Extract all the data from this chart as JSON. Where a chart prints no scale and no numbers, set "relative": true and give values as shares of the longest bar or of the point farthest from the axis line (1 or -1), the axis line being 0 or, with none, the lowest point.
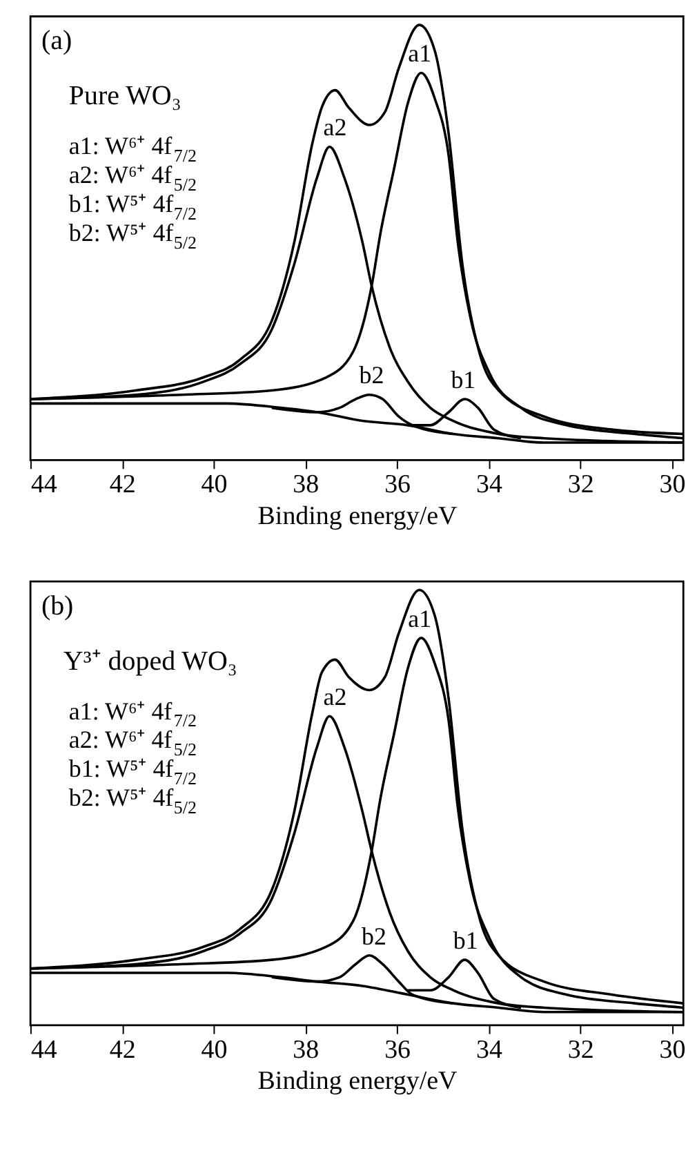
{
  "chart_data": [
    {
      "type": "line",
      "relative": true,
      "xlabel": "Binding energy/eV",
      "xlim": [
        44,
        29.75
      ],
      "xticks": [
        44,
        42,
        40,
        38,
        36,
        34,
        32,
        30
      ],
      "tick_labels": "x",
      "annotations": [
        "(a)",
        "Pure WO₃",
        "a1: W⁶⁺ 4f$_{7/2}$",
        "a2: W⁶⁺ 4f$_{5/2}$",
        "b1: W⁵⁺ 4f$_{7/2}$",
        "b2: W⁵⁺ 4f$_{5/2}$",
        {
          "text": "a1",
          "x": 35.5,
          "y": 0.9
        },
        {
          "text": "a2",
          "x": 37.35,
          "y": 0.73
        },
        {
          "text": "b2",
          "x": 36.55,
          "y": 0.16
        },
        {
          "text": "b1",
          "x": 34.55,
          "y": 0.15
        }
      ],
      "series": [
        {
          "color": "#000000",
          "x": [
            44,
            41.7,
            40.22,
            39.43,
            38.73,
            38.24,
            37.84,
            37.64,
            37.35,
            37.05,
            36.6,
            36.26,
            35.96,
            35.51,
            35.17,
            34.87,
            34.57,
            34.18,
            33.78,
            32.79,
            31.31,
            29.75
          ],
          "values": [
            0.14,
            0.16,
            0.19,
            0.23,
            0.32,
            0.5,
            0.73,
            0.81,
            0.85,
            0.81,
            0.77,
            0.8,
            0.9,
            1.0,
            0.94,
            0.75,
            0.45,
            0.24,
            0.16,
            0.1,
            0.07,
            0.06
          ]
        },
        {
          "color": "#000000",
          "x": [
            44,
            41.7,
            40.22,
            39.43,
            38.73,
            38.24,
            37.74,
            37.47,
            37.15,
            36.75,
            36.55,
            36.16,
            35.76,
            35.27,
            34.77,
            33.78,
            32.79,
            29.75
          ],
          "values": [
            0.14,
            0.15,
            0.18,
            0.22,
            0.3,
            0.45,
            0.65,
            0.72,
            0.65,
            0.5,
            0.4,
            0.26,
            0.18,
            0.12,
            0.09,
            0.06,
            0.05,
            0.04
          ]
        },
        {
          "color": "#000000",
          "x": [
            44,
            40.71,
            38.73,
            37.54,
            36.95,
            36.55,
            36.36,
            36.06,
            35.76,
            35.47,
            35.17,
            34.87,
            34.67,
            34.38,
            33.98,
            33.29,
            32.3,
            30.81,
            29.75
          ],
          "values": [
            0.14,
            0.15,
            0.16,
            0.19,
            0.25,
            0.4,
            0.52,
            0.67,
            0.82,
            0.89,
            0.83,
            0.7,
            0.5,
            0.32,
            0.2,
            0.12,
            0.08,
            0.06,
            0.05
          ]
        },
        {
          "color": "#000000",
          "x": [
            38.73,
            37.74,
            37.25,
            36.9,
            36.6,
            36.31,
            35.96,
            35.66,
            34.77
          ],
          "values": [
            0.12,
            0.11,
            0.12,
            0.14,
            0.15,
            0.14,
            0.1,
            0.08,
            0.06
          ]
        },
        {
          "color": "#000000",
          "x": [
            35.76,
            35.27,
            34.87,
            34.52,
            34.23,
            33.88,
            33.29
          ],
          "values": [
            0.08,
            0.08,
            0.11,
            0.14,
            0.12,
            0.07,
            0.05
          ]
        },
        {
          "color": "#000000",
          "x": [
            44,
            39.72,
            38.53,
            37.74,
            36.75,
            35.76,
            34.77,
            33.78,
            32.79,
            29.75
          ],
          "values": [
            0.13,
            0.13,
            0.12,
            0.11,
            0.09,
            0.08,
            0.06,
            0.05,
            0.04,
            0.04
          ]
        }
      ]
    },
    {
      "type": "line",
      "relative": true,
      "xlabel": "Binding energy/eV",
      "xlim": [
        44,
        29.75
      ],
      "xticks": [
        44,
        42,
        40,
        38,
        36,
        34,
        32,
        30
      ],
      "tick_labels": "x",
      "annotations": [
        "(b)",
        "Y³⁺ doped WO₃",
        "a1: W⁶⁺ 4f$_{7/2}$",
        "a2: W⁶⁺ 4f$_{5/2}$",
        "b1: W⁵⁺ 4f$_{7/2}$",
        "b2: W⁵⁺ 4f$_{5/2}$",
        {
          "text": "a1",
          "x": 35.5,
          "y": 0.9
        },
        {
          "text": "a2",
          "x": 37.35,
          "y": 0.72
        },
        {
          "text": "b2",
          "x": 36.5,
          "y": 0.17
        },
        {
          "text": "b1",
          "x": 34.5,
          "y": 0.16
        }
      ],
      "series": [
        {
          "color": "#000000",
          "x": [
            44,
            41.7,
            40.22,
            39.43,
            38.73,
            38.24,
            37.84,
            37.64,
            37.35,
            37.05,
            36.6,
            36.26,
            35.96,
            35.51,
            35.17,
            34.87,
            34.57,
            34.18,
            33.78,
            32.79,
            31.31,
            29.75
          ],
          "values": [
            0.13,
            0.15,
            0.18,
            0.22,
            0.31,
            0.49,
            0.72,
            0.81,
            0.84,
            0.8,
            0.77,
            0.8,
            0.9,
            1.0,
            0.94,
            0.75,
            0.45,
            0.24,
            0.16,
            0.1,
            0.07,
            0.05
          ]
        },
        {
          "color": "#000000",
          "x": [
            44,
            41.7,
            40.22,
            39.43,
            38.73,
            38.24,
            37.74,
            37.47,
            37.15,
            36.75,
            36.55,
            36.16,
            35.76,
            35.27,
            34.77,
            33.78,
            32.79,
            29.75
          ],
          "values": [
            0.13,
            0.14,
            0.17,
            0.21,
            0.29,
            0.44,
            0.64,
            0.71,
            0.64,
            0.49,
            0.4,
            0.26,
            0.17,
            0.11,
            0.08,
            0.05,
            0.04,
            0.03
          ]
        },
        {
          "color": "#000000",
          "x": [
            44,
            40.71,
            38.73,
            37.54,
            36.95,
            36.55,
            36.36,
            36.06,
            35.76,
            35.47,
            35.17,
            34.87,
            34.67,
            34.38,
            33.98,
            33.29,
            32.3,
            30.81,
            29.75
          ],
          "values": [
            0.13,
            0.14,
            0.15,
            0.18,
            0.24,
            0.4,
            0.52,
            0.67,
            0.82,
            0.89,
            0.83,
            0.7,
            0.5,
            0.32,
            0.2,
            0.11,
            0.07,
            0.05,
            0.04
          ]
        },
        {
          "color": "#000000",
          "x": [
            38.73,
            37.74,
            37.25,
            36.9,
            36.6,
            36.31,
            35.96,
            35.66,
            34.77
          ],
          "values": [
            0.11,
            0.1,
            0.11,
            0.14,
            0.16,
            0.14,
            0.1,
            0.07,
            0.05
          ]
        },
        {
          "color": "#000000",
          "x": [
            35.76,
            35.27,
            34.87,
            34.52,
            34.23,
            33.88,
            33.29
          ],
          "values": [
            0.08,
            0.08,
            0.11,
            0.15,
            0.12,
            0.06,
            0.04
          ]
        },
        {
          "color": "#000000",
          "x": [
            44,
            39.72,
            38.53,
            37.74,
            36.75,
            35.76,
            34.77,
            33.78,
            32.79,
            29.75
          ],
          "values": [
            0.12,
            0.12,
            0.11,
            0.1,
            0.09,
            0.07,
            0.05,
            0.04,
            0.03,
            0.03
          ]
        }
      ]
    }
  ]
}
